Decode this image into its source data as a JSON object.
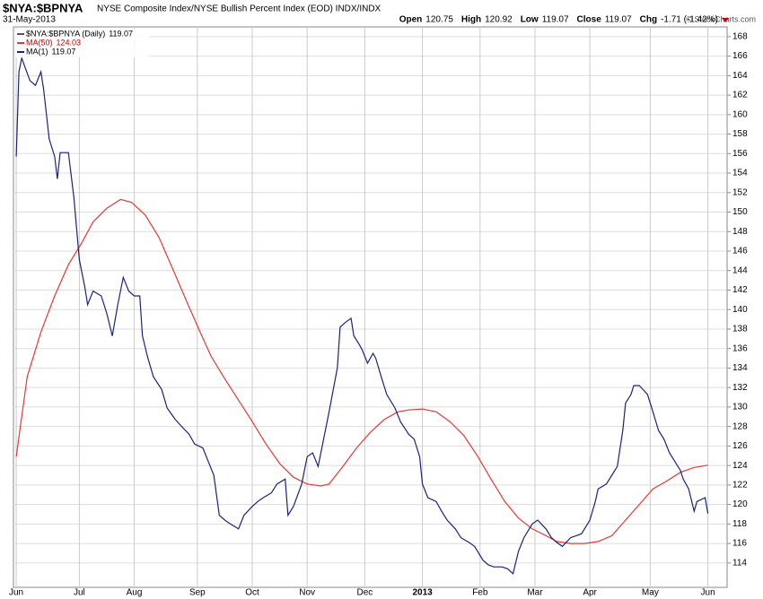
{
  "chart_data": {
    "type": "line",
    "title": "$NYA:$BPNYA",
    "subtitle": "NYSE Composite Index/NYSE Bullish Percent Index (EOD)  INDX/INDX",
    "date": "31-May-2013",
    "credit": "© StockCharts.com",
    "quote": [
      {
        "label": "Open",
        "value": "120.75"
      },
      {
        "label": "High",
        "value": "120.92"
      },
      {
        "label": "Low",
        "value": "119.07"
      },
      {
        "label": "Close",
        "value": "119.07"
      },
      {
        "label": "Chg",
        "value": "-1.71 (-1.42%)"
      }
    ],
    "price_label": {
      "name": "$NYA:$BPNYA (Daily)",
      "last": 119.07
    },
    "series": [
      {
        "name": "MA(1)",
        "color": "#1a237e",
        "last": 119.07,
        "x": [
          0,
          1,
          2,
          5,
          7,
          9,
          10,
          12,
          14,
          15,
          16,
          19,
          21,
          23,
          25,
          26,
          28,
          31,
          33,
          35,
          37,
          39,
          41,
          43,
          45,
          46,
          48,
          50,
          53,
          55,
          58,
          60,
          63,
          65,
          68,
          70,
          72,
          74,
          76,
          78,
          81,
          83,
          86,
          88,
          90,
          93,
          95,
          98,
          99,
          101,
          104,
          106,
          108,
          110,
          112,
          114,
          117,
          118,
          120,
          122,
          123,
          125,
          126,
          128,
          130,
          131,
          133,
          135,
          138,
          140,
          143,
          145,
          147,
          148,
          150,
          153,
          155,
          157,
          160,
          162,
          165,
          167,
          170,
          172,
          174,
          177,
          179,
          181,
          183,
          185,
          188,
          190,
          193,
          195,
          197,
          199,
          202,
          204,
          206,
          209,
          211,
          212,
          215,
          217,
          219,
          221,
          222,
          224,
          225,
          227,
          229,
          230,
          232,
          234,
          236,
          238,
          240,
          242,
          243,
          245,
          247,
          248,
          251,
          252
        ],
        "values": [
          155.7,
          164.4,
          165.8,
          163.5,
          163.0,
          164.4,
          162.6,
          157.5,
          155.7,
          153.4,
          156.1,
          156.1,
          151.5,
          145.1,
          142.3,
          140.5,
          141.9,
          141.4,
          139.6,
          137.3,
          140.5,
          143.3,
          141.9,
          141.4,
          141.4,
          137.3,
          135.0,
          133.1,
          131.8,
          129.9,
          128.7,
          128.1,
          127.2,
          126.2,
          125.8,
          124.4,
          123.0,
          118.9,
          118.4,
          118.0,
          117.5,
          118.9,
          119.8,
          120.3,
          120.7,
          121.2,
          122.1,
          122.6,
          118.9,
          119.8,
          122.1,
          124.9,
          125.3,
          123.9,
          126.7,
          129.5,
          134.0,
          138.2,
          138.7,
          139.1,
          137.3,
          136.4,
          135.9,
          134.5,
          135.5,
          135.0,
          133.1,
          131.3,
          129.9,
          128.5,
          127.2,
          126.7,
          124.9,
          122.1,
          120.7,
          120.3,
          119.3,
          118.4,
          117.5,
          116.6,
          116.1,
          115.7,
          114.3,
          113.8,
          113.6,
          113.6,
          113.4,
          112.9,
          115.2,
          116.6,
          118.0,
          118.4,
          117.5,
          116.6,
          116.1,
          115.7,
          116.6,
          116.8,
          117.0,
          118.4,
          120.3,
          121.6,
          122.1,
          123.0,
          123.9,
          127.6,
          130.4,
          131.3,
          132.2,
          132.2,
          131.6,
          131.3,
          129.5,
          127.6,
          126.7,
          125.3,
          124.4,
          123.5,
          122.6,
          121.6,
          119.3,
          120.3,
          120.7,
          119.07
        ]
      },
      {
        "name": "MA(50)",
        "color": "#e53935",
        "last": 124.03,
        "x": [
          0,
          4,
          9,
          14,
          19,
          24,
          28,
          33,
          38,
          42,
          47,
          52,
          57,
          62,
          67,
          71,
          76,
          81,
          86,
          91,
          96,
          101,
          106,
          111,
          114,
          119,
          124,
          129,
          134,
          139,
          143,
          148,
          153,
          158,
          163,
          168,
          173,
          178,
          183,
          188,
          193,
          197,
          202,
          207,
          212,
          217,
          222,
          227,
          232,
          237,
          242,
          247,
          252
        ],
        "values": [
          124.9,
          133.1,
          137.7,
          141.4,
          144.6,
          146.9,
          149.0,
          150.4,
          151.3,
          151.0,
          149.7,
          147.4,
          144.2,
          140.9,
          137.7,
          135.2,
          132.9,
          130.7,
          128.5,
          126.2,
          124.2,
          122.8,
          122.1,
          121.9,
          122.1,
          123.9,
          125.8,
          127.4,
          128.7,
          129.5,
          129.7,
          129.8,
          129.5,
          128.5,
          127.1,
          125.0,
          122.6,
          120.3,
          118.6,
          117.5,
          116.8,
          116.2,
          116.0,
          116.0,
          116.2,
          116.8,
          118.4,
          120.0,
          121.6,
          122.4,
          123.3,
          123.8,
          124.03
        ]
      }
    ],
    "xlim": [
      -1,
      259
    ],
    "xticks": [
      {
        "value": 0,
        "label": "Jun"
      },
      {
        "value": 23,
        "label": "Jul"
      },
      {
        "value": 43,
        "label": "Aug"
      },
      {
        "value": 66,
        "label": "Sep"
      },
      {
        "value": 86,
        "label": "Oct"
      },
      {
        "value": 106,
        "label": "Nov"
      },
      {
        "value": 127,
        "label": "Dec"
      },
      {
        "value": 148,
        "label": "2013"
      },
      {
        "value": 169,
        "label": "Feb"
      },
      {
        "value": 189,
        "label": "Mar"
      },
      {
        "value": 209,
        "label": "Apr"
      },
      {
        "value": 231,
        "label": "May"
      },
      {
        "value": 252,
        "label": "Jun"
      }
    ],
    "ylim": [
      111.5,
      169
    ],
    "yticks": [
      114,
      116,
      118,
      120,
      122,
      124,
      126,
      128,
      130,
      132,
      134,
      136,
      138,
      140,
      142,
      144,
      146,
      148,
      150,
      152,
      154,
      156,
      158,
      160,
      162,
      164,
      166,
      168
    ],
    "grid": true
  }
}
